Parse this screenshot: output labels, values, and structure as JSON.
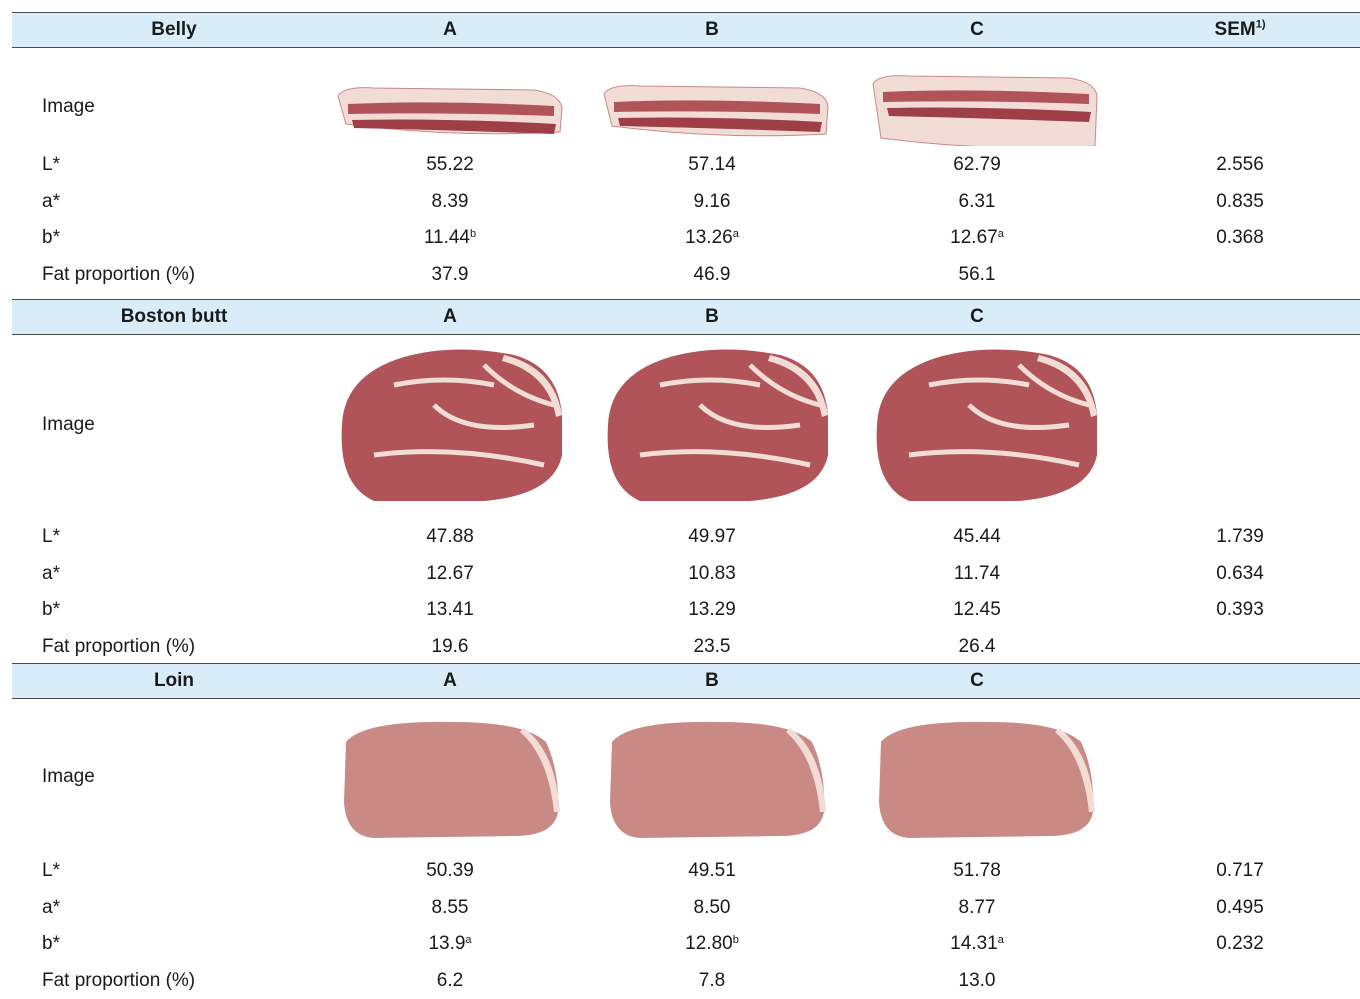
{
  "sections": [
    {
      "name": "Belly",
      "col_a": "A",
      "col_b": "B",
      "col_c": "C",
      "col_sem": "SEM",
      "col_sem_sup": "1)",
      "image_label": "Image",
      "rows": [
        {
          "label": "L*",
          "a": "55.22",
          "a_sup": "",
          "b": "57.14",
          "b_sup": "",
          "c": "62.79",
          "c_sup": "",
          "sem": "2.556"
        },
        {
          "label": "a*",
          "a": "8.39",
          "a_sup": "",
          "b": "9.16",
          "b_sup": "",
          "c": "6.31",
          "c_sup": "",
          "sem": "0.835"
        },
        {
          "label": "b*",
          "a": "11.44",
          "a_sup": "b",
          "b": "13.26",
          "b_sup": "a",
          "c": "12.67",
          "c_sup": "a",
          "sem": "0.368"
        },
        {
          "label": "Fat proportion (%)",
          "a": "37.9",
          "a_sup": "",
          "b": "46.9",
          "b_sup": "",
          "c": "56.1",
          "c_sup": "",
          "sem": ""
        }
      ]
    },
    {
      "name": "Boston butt",
      "col_a": "A",
      "col_b": "B",
      "col_c": "C",
      "col_sem": "",
      "col_sem_sup": "",
      "image_label": "Image",
      "rows": [
        {
          "label": "L*",
          "a": "47.88",
          "a_sup": "",
          "b": "49.97",
          "b_sup": "",
          "c": "45.44",
          "c_sup": "",
          "sem": "1.739"
        },
        {
          "label": "a*",
          "a": "12.67",
          "a_sup": "",
          "b": "10.83",
          "b_sup": "",
          "c": "11.74",
          "c_sup": "",
          "sem": "0.634"
        },
        {
          "label": "b*",
          "a": "13.41",
          "a_sup": "",
          "b": "13.29",
          "b_sup": "",
          "c": "12.45",
          "c_sup": "",
          "sem": "0.393"
        },
        {
          "label": "Fat proportion (%)",
          "a": "19.6",
          "a_sup": "",
          "b": "23.5",
          "b_sup": "",
          "c": "26.4",
          "c_sup": "",
          "sem": ""
        }
      ]
    },
    {
      "name": "Loin",
      "col_a": "A",
      "col_b": "B",
      "col_c": "C",
      "col_sem": "",
      "col_sem_sup": "",
      "image_label": "Image",
      "rows": [
        {
          "label": "L*",
          "a": "50.39",
          "a_sup": "",
          "b": "49.51",
          "b_sup": "",
          "c": "51.78",
          "c_sup": "",
          "sem": "0.717"
        },
        {
          "label": "a*",
          "a": "8.55",
          "a_sup": "",
          "b": "8.50",
          "b_sup": "",
          "c": "8.77",
          "c_sup": "",
          "sem": "0.495"
        },
        {
          "label": "b*",
          "a": "13.9",
          "a_sup": "a",
          "b": "12.80",
          "b_sup": "b",
          "c": "14.31",
          "c_sup": "a",
          "sem": "0.232"
        },
        {
          "label": "Fat proportion (%)",
          "a": "6.2",
          "a_sup": "",
          "b": "7.8",
          "b_sup": "",
          "c": "13.0",
          "c_sup": "",
          "sem": ""
        }
      ]
    }
  ],
  "colors": {
    "header_bg": "#d8edf7",
    "rule": "#4a4a4a",
    "meat_lean": "#b0545a",
    "meat_fat": "#f2dcd6",
    "loin_lean": "#c98a86"
  }
}
